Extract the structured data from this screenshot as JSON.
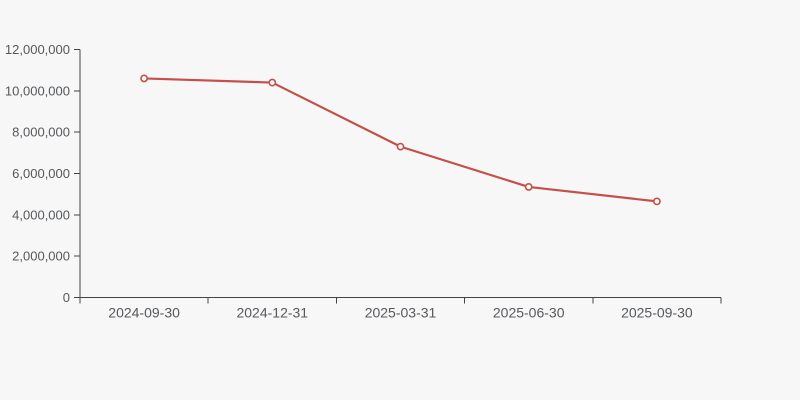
{
  "page": {
    "background_color": "#f7f7f7"
  },
  "chart_data": {
    "type": "line",
    "categories": [
      "2024-09-30",
      "2024-12-31",
      "2025-03-31",
      "2025-06-30",
      "2025-09-30"
    ],
    "values": [
      10600000,
      10400000,
      7300000,
      5350000,
      4650000
    ],
    "y_tick_labels": [
      "0",
      "2,000,000",
      "4,000,000",
      "6,000,000",
      "8,000,000",
      "10,000,000",
      "12,000,000"
    ],
    "ylim": [
      0,
      12000000
    ],
    "y_tick_interval": 2000000,
    "xlabel": "",
    "ylabel": "",
    "grid": false,
    "legend": false,
    "marker": "hollow-circle",
    "colors": {
      "line": "#c5504b",
      "marker_fill": "#ffffff",
      "axis": "#444444",
      "label": "#55585c",
      "background": "#f7f7f7"
    }
  }
}
